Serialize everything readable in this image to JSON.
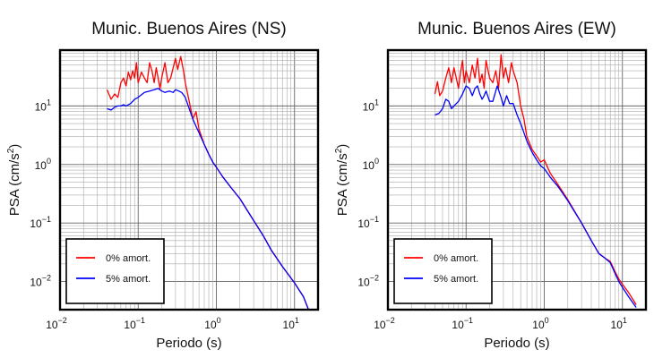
{
  "charts": [
    {
      "title": "Munic. Buenos Aires (NS)",
      "xlabel": "Periodo (s)",
      "ylabel": {
        "main": "PSA (cm/s",
        "sup": "2",
        "close": ")"
      }
    },
    {
      "title": "Munic. Buenos Aires (EW)",
      "xlabel": "Periodo (s)",
      "ylabel": {
        "main": "PSA (cm/s",
        "sup": "2",
        "close": ")"
      }
    }
  ],
  "chart_data": [
    {
      "type": "line",
      "title": "Munic. Buenos Aires (NS)",
      "xlabel": "Periodo (s)",
      "ylabel": "PSA (cm/s2)",
      "xscale": "log",
      "yscale": "log",
      "xlim": [
        0.01,
        20
      ],
      "ylim": [
        0.0033,
        90
      ],
      "grid": true,
      "legend_position": "bottom-left",
      "x_ticks": [
        {
          "base": "10",
          "exp": "−2"
        },
        {
          "base": "10",
          "exp": "−1"
        },
        {
          "base": "10",
          "exp": "0"
        },
        {
          "base": "10",
          "exp": "1"
        }
      ],
      "y_ticks": [
        {
          "base": "10",
          "exp": "−2"
        },
        {
          "base": "10",
          "exp": "−1"
        },
        {
          "base": "10",
          "exp": "0"
        },
        {
          "base": "10",
          "exp": "1"
        }
      ],
      "series": [
        {
          "name": "0% amort.",
          "color": "#ff0000",
          "x": [
            0.04,
            0.045,
            0.05,
            0.055,
            0.06,
            0.065,
            0.07,
            0.075,
            0.08,
            0.085,
            0.09,
            0.095,
            0.1,
            0.11,
            0.12,
            0.13,
            0.14,
            0.15,
            0.16,
            0.17,
            0.18,
            0.19,
            0.2,
            0.22,
            0.24,
            0.26,
            0.28,
            0.3,
            0.32,
            0.35,
            0.38,
            0.4,
            0.45,
            0.5,
            0.55,
            0.6,
            0.7,
            0.8,
            0.9,
            1.0,
            1.2,
            1.5,
            2,
            3,
            4,
            5,
            7,
            10,
            13,
            15
          ],
          "y": [
            19,
            13,
            16,
            14,
            25,
            30,
            22,
            38,
            28,
            40,
            30,
            55,
            25,
            38,
            30,
            25,
            55,
            40,
            25,
            45,
            30,
            20,
            30,
            55,
            25,
            30,
            45,
            65,
            42,
            70,
            40,
            25,
            12,
            6,
            8,
            4,
            2.2,
            1.5,
            1.1,
            0.9,
            0.62,
            0.42,
            0.26,
            0.11,
            0.06,
            0.035,
            0.018,
            0.0095,
            0.0055,
            0.0034
          ]
        },
        {
          "name": "5% amort.",
          "color": "#0000ff",
          "x": [
            0.04,
            0.045,
            0.05,
            0.055,
            0.06,
            0.065,
            0.07,
            0.08,
            0.09,
            0.1,
            0.12,
            0.14,
            0.16,
            0.18,
            0.2,
            0.22,
            0.25,
            0.28,
            0.3,
            0.33,
            0.36,
            0.4,
            0.45,
            0.5,
            0.55,
            0.6,
            0.7,
            0.8,
            0.9,
            1.0,
            1.2,
            1.5,
            2,
            3,
            4,
            5,
            7,
            10,
            13,
            15
          ],
          "y": [
            9,
            8.5,
            9.5,
            10,
            10,
            10.5,
            10,
            11,
            13,
            14,
            17,
            18,
            19,
            20,
            18,
            17,
            18,
            17,
            19,
            18,
            17,
            14,
            9,
            6,
            4.5,
            3.5,
            2.2,
            1.5,
            1.1,
            0.9,
            0.62,
            0.42,
            0.26,
            0.11,
            0.06,
            0.035,
            0.018,
            0.0095,
            0.0055,
            0.0034
          ]
        }
      ]
    },
    {
      "type": "line",
      "title": "Munic. Buenos Aires (EW)",
      "xlabel": "Periodo (s)",
      "ylabel": "PSA (cm/s2)",
      "xscale": "log",
      "yscale": "log",
      "xlim": [
        0.01,
        20
      ],
      "ylim": [
        0.0033,
        90
      ],
      "grid": true,
      "legend_position": "bottom-left",
      "x_ticks": [
        {
          "base": "10",
          "exp": "−2"
        },
        {
          "base": "10",
          "exp": "−1"
        },
        {
          "base": "10",
          "exp": "0"
        },
        {
          "base": "10",
          "exp": "1"
        }
      ],
      "y_ticks": [
        {
          "base": "10",
          "exp": "−2"
        },
        {
          "base": "10",
          "exp": "−1"
        },
        {
          "base": "10",
          "exp": "0"
        },
        {
          "base": "10",
          "exp": "1"
        }
      ],
      "series": [
        {
          "name": "0% amort.",
          "color": "#ff0000",
          "x": [
            0.04,
            0.043,
            0.046,
            0.05,
            0.055,
            0.06,
            0.065,
            0.07,
            0.075,
            0.08,
            0.085,
            0.09,
            0.095,
            0.1,
            0.11,
            0.12,
            0.13,
            0.14,
            0.15,
            0.16,
            0.17,
            0.18,
            0.2,
            0.22,
            0.24,
            0.26,
            0.28,
            0.3,
            0.32,
            0.35,
            0.38,
            0.4,
            0.45,
            0.5,
            0.55,
            0.6,
            0.7,
            0.8,
            0.9,
            1.0,
            1.1,
            1.2,
            1.5,
            2,
            3,
            4,
            5,
            6,
            7,
            8,
            9,
            10,
            12,
            15
          ],
          "y": [
            16,
            26,
            15,
            18,
            30,
            45,
            25,
            45,
            30,
            20,
            38,
            60,
            25,
            40,
            25,
            50,
            30,
            65,
            25,
            35,
            20,
            60,
            30,
            25,
            40,
            20,
            75,
            30,
            45,
            25,
            55,
            40,
            25,
            10,
            6,
            3,
            1.8,
            1.4,
            1.1,
            1.2,
            0.9,
            0.7,
            0.45,
            0.25,
            0.1,
            0.05,
            0.03,
            0.025,
            0.022,
            0.015,
            0.011,
            0.009,
            0.0065,
            0.004
          ]
        },
        {
          "name": "5% amort.",
          "color": "#0000ff",
          "x": [
            0.04,
            0.045,
            0.05,
            0.055,
            0.06,
            0.065,
            0.07,
            0.08,
            0.09,
            0.1,
            0.11,
            0.12,
            0.13,
            0.14,
            0.15,
            0.16,
            0.17,
            0.18,
            0.2,
            0.22,
            0.25,
            0.28,
            0.3,
            0.33,
            0.36,
            0.4,
            0.45,
            0.5,
            0.55,
            0.6,
            0.7,
            0.8,
            0.9,
            1.0,
            1.2,
            1.5,
            2,
            3,
            4,
            5,
            6,
            7,
            8,
            9,
            10,
            12,
            15
          ],
          "y": [
            7,
            7.5,
            9,
            13,
            12,
            9,
            10,
            12,
            16,
            22,
            20,
            15,
            20,
            22,
            16,
            13,
            15,
            18,
            12,
            12,
            22,
            14,
            10,
            15,
            11,
            11,
            7,
            5,
            3.5,
            2.5,
            1.6,
            1.2,
            0.95,
            0.85,
            0.6,
            0.42,
            0.24,
            0.1,
            0.05,
            0.03,
            0.025,
            0.021,
            0.014,
            0.01,
            0.008,
            0.0055,
            0.0036
          ]
        }
      ]
    }
  ]
}
